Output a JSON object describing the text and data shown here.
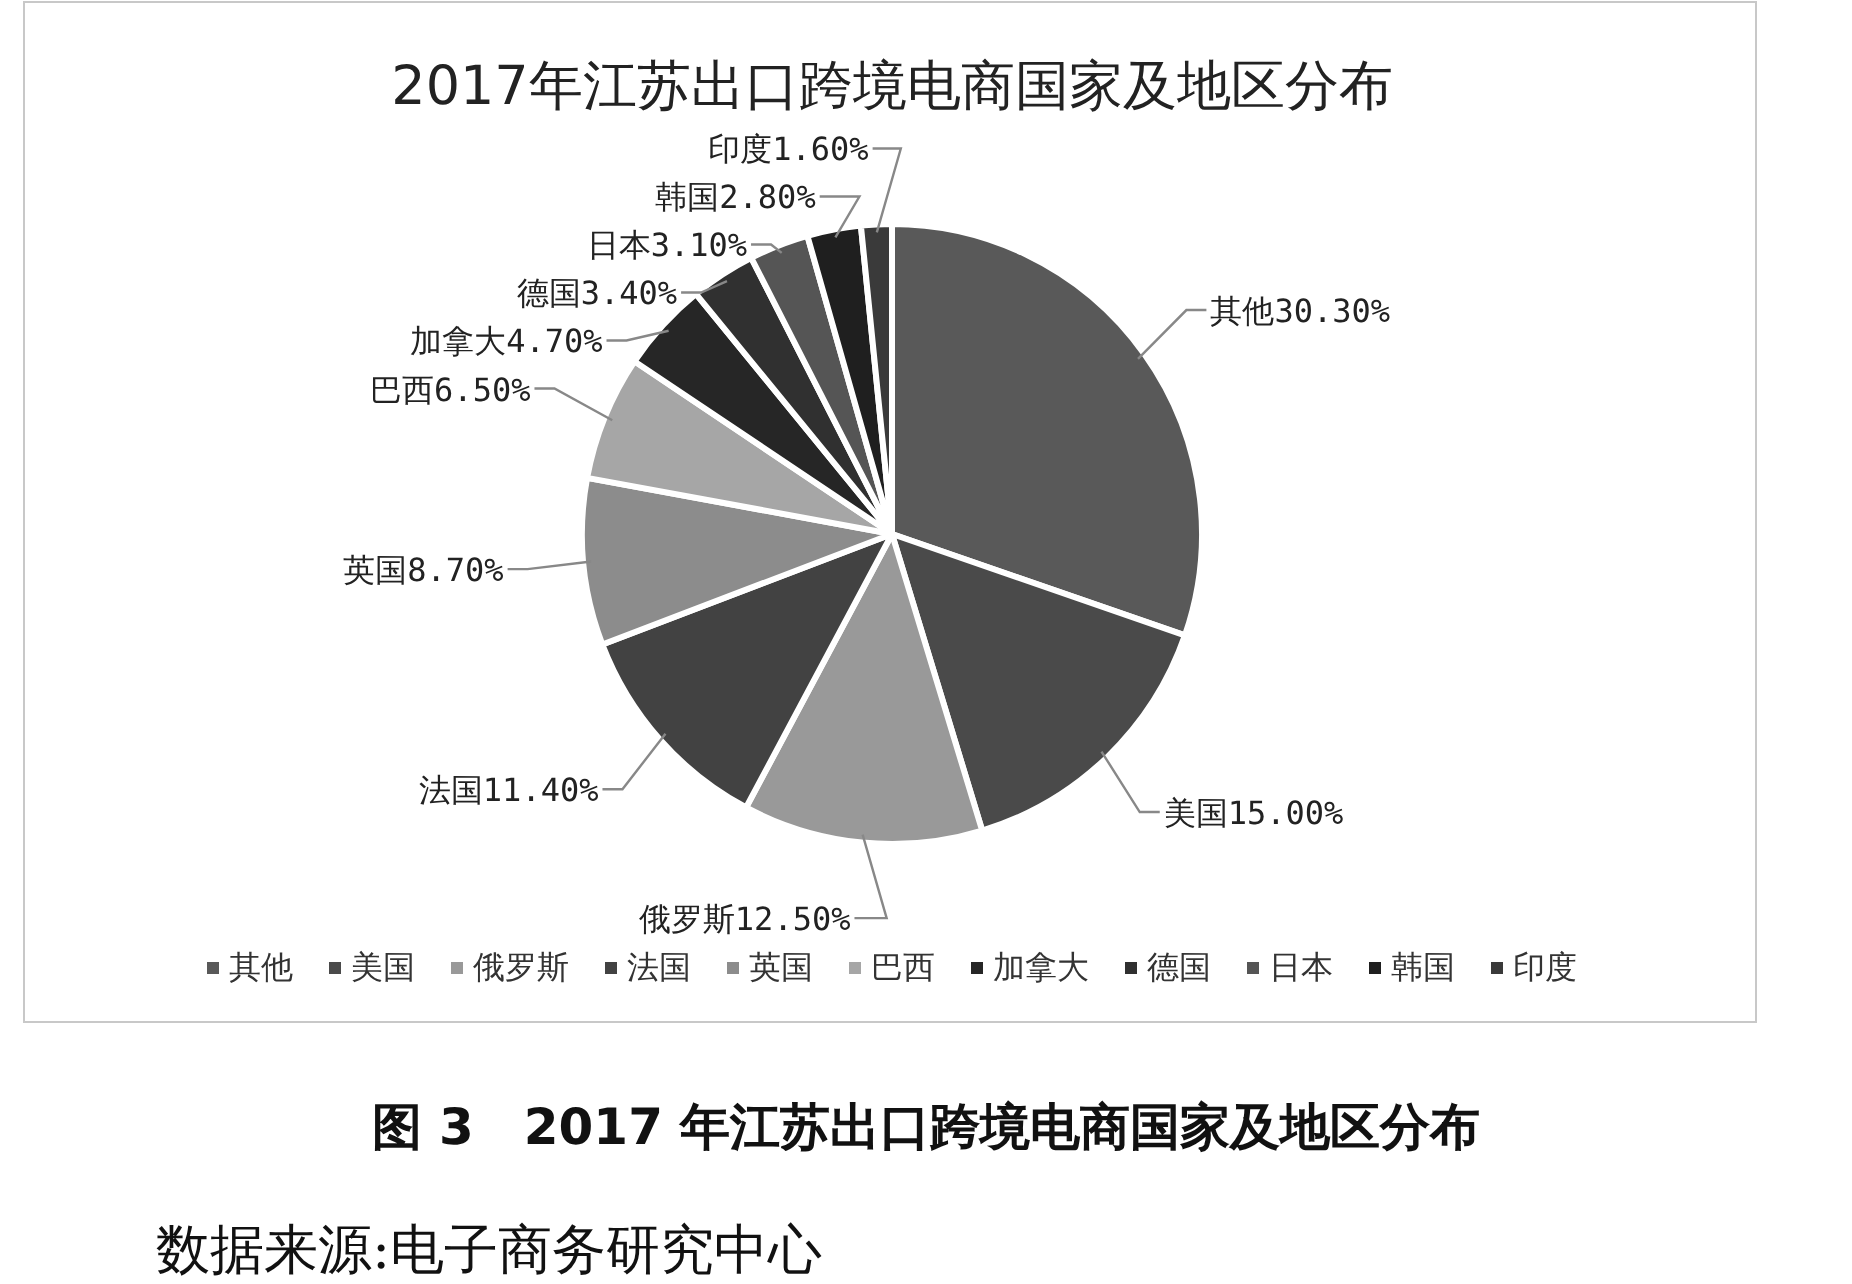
{
  "chart_data": {
    "type": "pie",
    "title": "2017年江苏出口跨境电商国家及地区分布",
    "categories": [
      "其他",
      "美国",
      "俄罗斯",
      "法国",
      "英国",
      "巴西",
      "加拿大",
      "德国",
      "日本",
      "韩国",
      "印度"
    ],
    "values": [
      30.3,
      15.0,
      12.5,
      11.4,
      8.7,
      6.5,
      4.7,
      3.4,
      3.1,
      2.8,
      1.6
    ],
    "value_labels": [
      "30.30%",
      "15.00%",
      "12.50%",
      "11.40%",
      "8.70%",
      "6.50%",
      "4.70%",
      "3.40%",
      "3.10%",
      "2.80%",
      "1.60%"
    ],
    "colors": [
      "#595959",
      "#4a4a4a",
      "#999999",
      "#424242",
      "#8c8c8c",
      "#a6a6a6",
      "#262626",
      "#303030",
      "#555555",
      "#1f1f1f",
      "#3a3a3a"
    ],
    "legend": "bottom",
    "annotations": [
      "图 3　2017 年江苏出口跨境电商国家及地区分布",
      "数据来源:电子商务研究中心"
    ]
  }
}
